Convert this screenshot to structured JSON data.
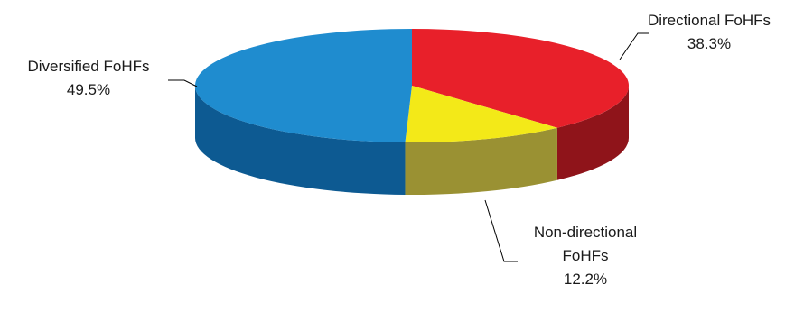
{
  "chart_data": {
    "type": "pie",
    "style": "3d",
    "slices": [
      {
        "label_lines": [
          "Directional FoHFs"
        ],
        "value": 38.3,
        "value_label": "38.3%",
        "color": "#e8202a",
        "side_color": "#8f141a"
      },
      {
        "label_lines": [
          "Non-directional",
          "FoHFs"
        ],
        "value": 12.2,
        "value_label": "12.2%",
        "color": "#f3e918",
        "side_color": "#9a9133"
      },
      {
        "label_lines": [
          "Diversified FoHFs"
        ],
        "value": 49.5,
        "value_label": "49.5%",
        "color": "#1f8ccf",
        "side_color": "#0d5a92"
      }
    ]
  }
}
